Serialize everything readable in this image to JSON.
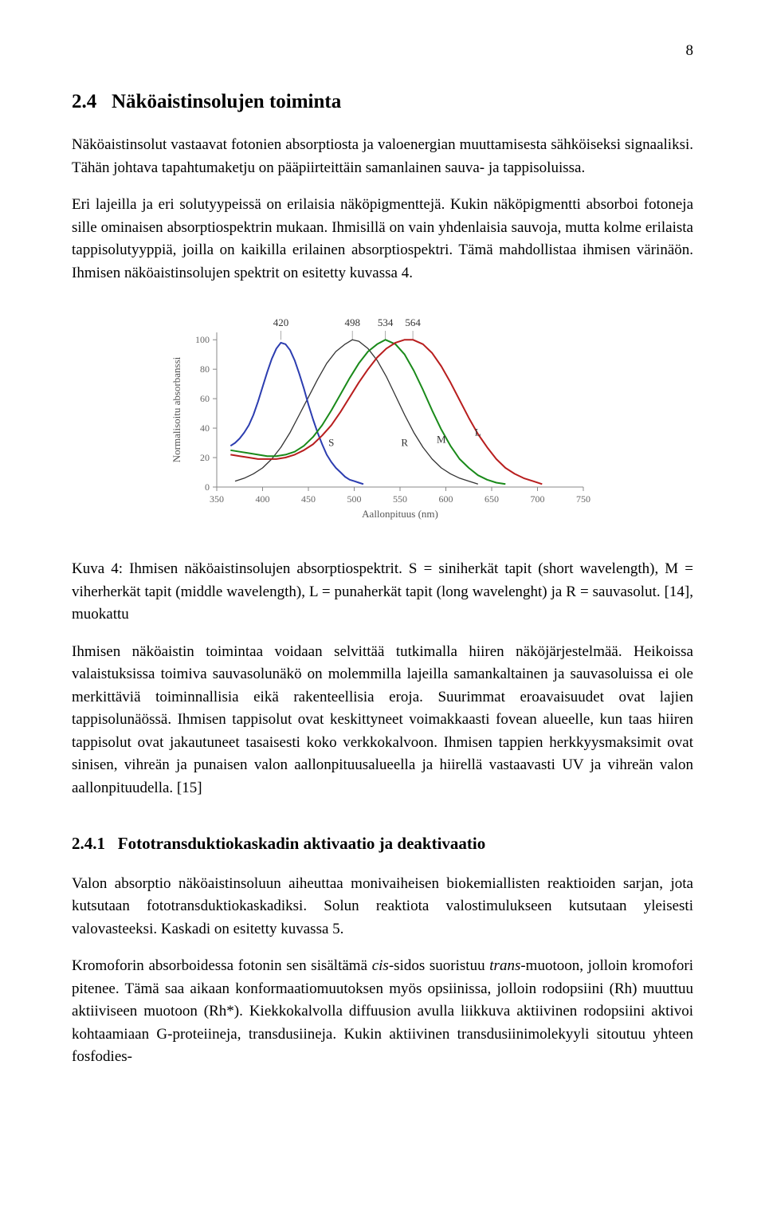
{
  "page_number": "8",
  "section": {
    "number": "2.4",
    "title": "Näköaistinsolujen toiminta"
  },
  "para1": "Näköaistinsolut vastaavat fotonien absorptiosta ja valoenergian muuttamisesta sähköiseksi signaaliksi. Tähän johtava tapahtumaketju on pääpiirteittäin samanlainen sauva- ja tappisoluissa.",
  "para2": "Eri lajeilla ja eri solutyypeissä on erilaisia näköpigmenttejä. Kukin näköpigmentti absorboi fotoneja sille ominaisen absorptiospektrin mukaan. Ihmisillä on vain yhdenlaisia sauvoja, mutta kolme erilaista tappisolutyyppiä, joilla on kaikilla erilainen absorptiospektri. Tämä mahdollistaa ihmisen värinäön. Ihmisen näköaistinsolujen spektrit on esitetty kuvassa 4.",
  "caption": "Kuva 4: Ihmisen näköaistinsolujen absorptiospektrit. S = siniherkät tapit (short wavelength), M = viherherkät tapit (middle wavelength), L = punaherkät tapit (long wavelenght) ja R = sauvasolut. [14], muokattu",
  "para3": "Ihmisen näköaistin toimintaa voidaan selvittää tutkimalla hiiren näköjärjestelmää. Heikoissa valaistuksissa toimiva sauvasolunäkö on molemmilla lajeilla samankaltainen ja sauvasoluissa ei ole merkittäviä toiminnallisia eikä rakenteellisia eroja. Suurimmat eroavaisuudet ovat lajien tappisolunäössä. Ihmisen tappisolut ovat keskittyneet voimakkaasti fovean alueelle, kun taas hiiren tappisolut ovat jakautuneet tasaisesti koko verkkokalvoon. Ihmisen tappien herkkyysmaksimit ovat sinisen, vihreän ja punaisen valon aallonpituusalueella ja hiirellä vastaavasti UV ja vihreän valon aallonpituudella. [15]",
  "subsection": {
    "number": "2.4.1",
    "title": "Fototransduktiokaskadin aktivaatio ja deaktivaatio"
  },
  "para4": "Valon absorptio näköaistinsoluun aiheuttaa monivaiheisen biokemiallisten reaktioiden sarjan, jota kutsutaan fototransduktiokaskadiksi. Solun reaktiota valostimulukseen kutsutaan yleisesti valovasteeksi. Kaskadi on esitetty kuvassa 5.",
  "para5": "Kromoforin absorboidessa fotonin sen sisältämä cis-sidos suoristuu trans-muotoon, jolloin kromofori pitenee. Tämä saa aikaan konformaatiomuutoksen myös opsiinissa, jolloin rodopsiini (Rh) muuttuu aktiiviseen muotoon (Rh*). Kiekkokalvolla diffuusion avulla liikkuva aktiivinen rodopsiini aktivoi kohtaamiaan G-proteiineja, transdusiineja. Kukin aktiivinen transdusiinimolekyyli sitoutuu yhteen fosfodies-",
  "chart": {
    "type": "line",
    "ylabel": "Normalisoitu absorbanssi",
    "xlabel": "Aallonpituus (nm)",
    "xlim": [
      350,
      750
    ],
    "ylim": [
      0,
      105
    ],
    "xticks": [
      350,
      400,
      450,
      500,
      550,
      600,
      650,
      700,
      750
    ],
    "yticks": [
      0,
      20,
      40,
      60,
      80,
      100
    ],
    "background_color": "#ffffff",
    "axis_color": "#888888",
    "tick_color": "#888888",
    "grid_color": "#dddddd",
    "peak_labels": [
      {
        "text": "420",
        "wavelength": 420
      },
      {
        "text": "498",
        "wavelength": 498
      },
      {
        "text": "534",
        "wavelength": 534
      },
      {
        "text": "564",
        "wavelength": 564
      }
    ],
    "curve_labels": [
      {
        "text": "S",
        "x": 475,
        "y": 28
      },
      {
        "text": "R",
        "x": 555,
        "y": 28
      },
      {
        "text": "M",
        "x": 595,
        "y": 30
      },
      {
        "text": "L",
        "x": 635,
        "y": 35
      }
    ],
    "series": {
      "S": {
        "color": "#2c3db0",
        "stroke_width": 2.0,
        "peak": 420,
        "points": [
          [
            365,
            28
          ],
          [
            370,
            30
          ],
          [
            375,
            33
          ],
          [
            380,
            37
          ],
          [
            385,
            42
          ],
          [
            390,
            49
          ],
          [
            395,
            58
          ],
          [
            400,
            68
          ],
          [
            405,
            78
          ],
          [
            410,
            87
          ],
          [
            415,
            94
          ],
          [
            420,
            98
          ],
          [
            425,
            97
          ],
          [
            430,
            93
          ],
          [
            435,
            86
          ],
          [
            440,
            77
          ],
          [
            445,
            67
          ],
          [
            450,
            56
          ],
          [
            455,
            46
          ],
          [
            460,
            37
          ],
          [
            465,
            29
          ],
          [
            470,
            22
          ],
          [
            475,
            17
          ],
          [
            480,
            13
          ],
          [
            485,
            10
          ],
          [
            490,
            7
          ],
          [
            495,
            5
          ],
          [
            500,
            4
          ],
          [
            505,
            3
          ],
          [
            510,
            2
          ]
        ]
      },
      "R": {
        "color": "#333333",
        "stroke_width": 1.3,
        "peak": 498,
        "points": [
          [
            370,
            4
          ],
          [
            380,
            6
          ],
          [
            390,
            9
          ],
          [
            400,
            13
          ],
          [
            410,
            19
          ],
          [
            420,
            27
          ],
          [
            430,
            37
          ],
          [
            440,
            49
          ],
          [
            450,
            61
          ],
          [
            460,
            73
          ],
          [
            470,
            84
          ],
          [
            480,
            92
          ],
          [
            490,
            97
          ],
          [
            498,
            100
          ],
          [
            505,
            99
          ],
          [
            515,
            94
          ],
          [
            525,
            86
          ],
          [
            535,
            75
          ],
          [
            545,
            62
          ],
          [
            555,
            49
          ],
          [
            565,
            37
          ],
          [
            575,
            27
          ],
          [
            585,
            19
          ],
          [
            595,
            13
          ],
          [
            605,
            9
          ],
          [
            615,
            6
          ],
          [
            625,
            4
          ],
          [
            635,
            2
          ]
        ]
      },
      "M": {
        "color": "#1a8a1a",
        "stroke_width": 2.0,
        "peak": 534,
        "points": [
          [
            365,
            25
          ],
          [
            375,
            24
          ],
          [
            385,
            23
          ],
          [
            395,
            22
          ],
          [
            405,
            21
          ],
          [
            415,
            21
          ],
          [
            425,
            22
          ],
          [
            435,
            24
          ],
          [
            445,
            28
          ],
          [
            455,
            34
          ],
          [
            465,
            42
          ],
          [
            475,
            52
          ],
          [
            485,
            63
          ],
          [
            495,
            74
          ],
          [
            505,
            84
          ],
          [
            515,
            92
          ],
          [
            525,
            97
          ],
          [
            534,
            100
          ],
          [
            545,
            97
          ],
          [
            555,
            90
          ],
          [
            565,
            79
          ],
          [
            575,
            66
          ],
          [
            585,
            52
          ],
          [
            595,
            39
          ],
          [
            605,
            28
          ],
          [
            615,
            19
          ],
          [
            625,
            13
          ],
          [
            635,
            8
          ],
          [
            645,
            5
          ],
          [
            655,
            3
          ],
          [
            665,
            2
          ]
        ]
      },
      "L": {
        "color": "#b81e1e",
        "stroke_width": 2.0,
        "peak": 564,
        "points": [
          [
            365,
            22
          ],
          [
            375,
            21
          ],
          [
            385,
            20
          ],
          [
            395,
            19
          ],
          [
            405,
            19
          ],
          [
            415,
            19
          ],
          [
            425,
            20
          ],
          [
            435,
            22
          ],
          [
            445,
            25
          ],
          [
            455,
            29
          ],
          [
            465,
            35
          ],
          [
            475,
            42
          ],
          [
            485,
            51
          ],
          [
            495,
            61
          ],
          [
            505,
            71
          ],
          [
            515,
            80
          ],
          [
            525,
            88
          ],
          [
            535,
            94
          ],
          [
            545,
            98
          ],
          [
            555,
            100
          ],
          [
            564,
            100
          ],
          [
            575,
            97
          ],
          [
            585,
            91
          ],
          [
            595,
            82
          ],
          [
            605,
            71
          ],
          [
            615,
            59
          ],
          [
            625,
            47
          ],
          [
            635,
            36
          ],
          [
            645,
            27
          ],
          [
            655,
            19
          ],
          [
            665,
            13
          ],
          [
            675,
            9
          ],
          [
            685,
            6
          ],
          [
            695,
            4
          ],
          [
            705,
            2
          ]
        ]
      }
    }
  }
}
